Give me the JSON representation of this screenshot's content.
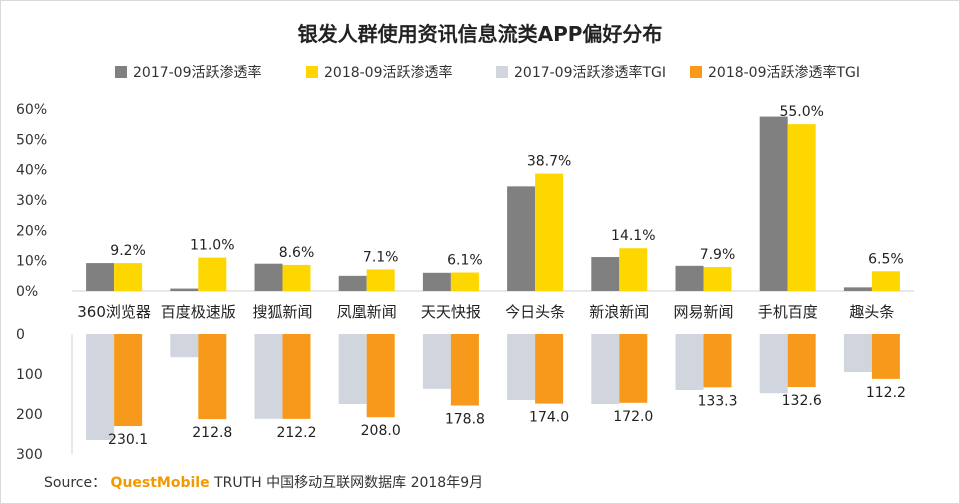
{
  "title": "银发人群使用资讯信息流类APP偏好分布",
  "source": {
    "prefix": "Source：",
    "brand": "QuestMobile",
    "text": "TRUTH 中国移动互联网数据库 2018年9月"
  },
  "colors": {
    "s2017": "#808080",
    "s2018": "#ffd700",
    "tgi2017": "#d1d5de",
    "tgi2018": "#f79a1b"
  },
  "chart_data": {
    "type": "bar",
    "categories": [
      "360浏览器",
      "百度极速版",
      "搜狐新闻",
      "凤凰新闻",
      "天天快报",
      "今日头条",
      "新浪新闻",
      "网易新闻",
      "手机百度",
      "趣头条"
    ],
    "top": {
      "ylim": [
        0,
        60
      ],
      "ticks": [
        "0%",
        "10%",
        "20%",
        "30%",
        "40%",
        "50%",
        "60%"
      ],
      "series": [
        {
          "name": "2017-09活跃渗透率",
          "values": [
            9.2,
            0.8,
            9.0,
            5.0,
            6.0,
            34.5,
            11.2,
            8.3,
            57.5,
            1.2
          ]
        },
        {
          "name": "2018-09活跃渗透率",
          "values": [
            9.2,
            11.0,
            8.6,
            7.1,
            6.1,
            38.7,
            14.1,
            7.9,
            55.0,
            6.5
          ],
          "labels": [
            "9.2%",
            "11.0%",
            "8.6%",
            "7.1%",
            "6.1%",
            "38.7%",
            "14.1%",
            "7.9%",
            "55.0%",
            "6.5%"
          ]
        }
      ]
    },
    "bottom": {
      "ylim": [
        0,
        300
      ],
      "ticks": [
        "0",
        "100",
        "200",
        "300"
      ],
      "series": [
        {
          "name": "2017-09活跃渗透率TGI",
          "values": [
            265,
            58,
            212,
            175,
            137,
            165,
            175,
            140,
            148,
            95
          ]
        },
        {
          "name": "2018-09活跃渗透率TGI",
          "values": [
            230.1,
            212.8,
            212.2,
            208.0,
            178.8,
            174.0,
            172.0,
            133.3,
            132.6,
            112.2
          ],
          "labels": [
            "230.1",
            "212.8",
            "212.2",
            "208.0",
            "178.8",
            "174.0",
            "172.0",
            "133.3",
            "132.6",
            "112.2"
          ]
        }
      ]
    }
  }
}
